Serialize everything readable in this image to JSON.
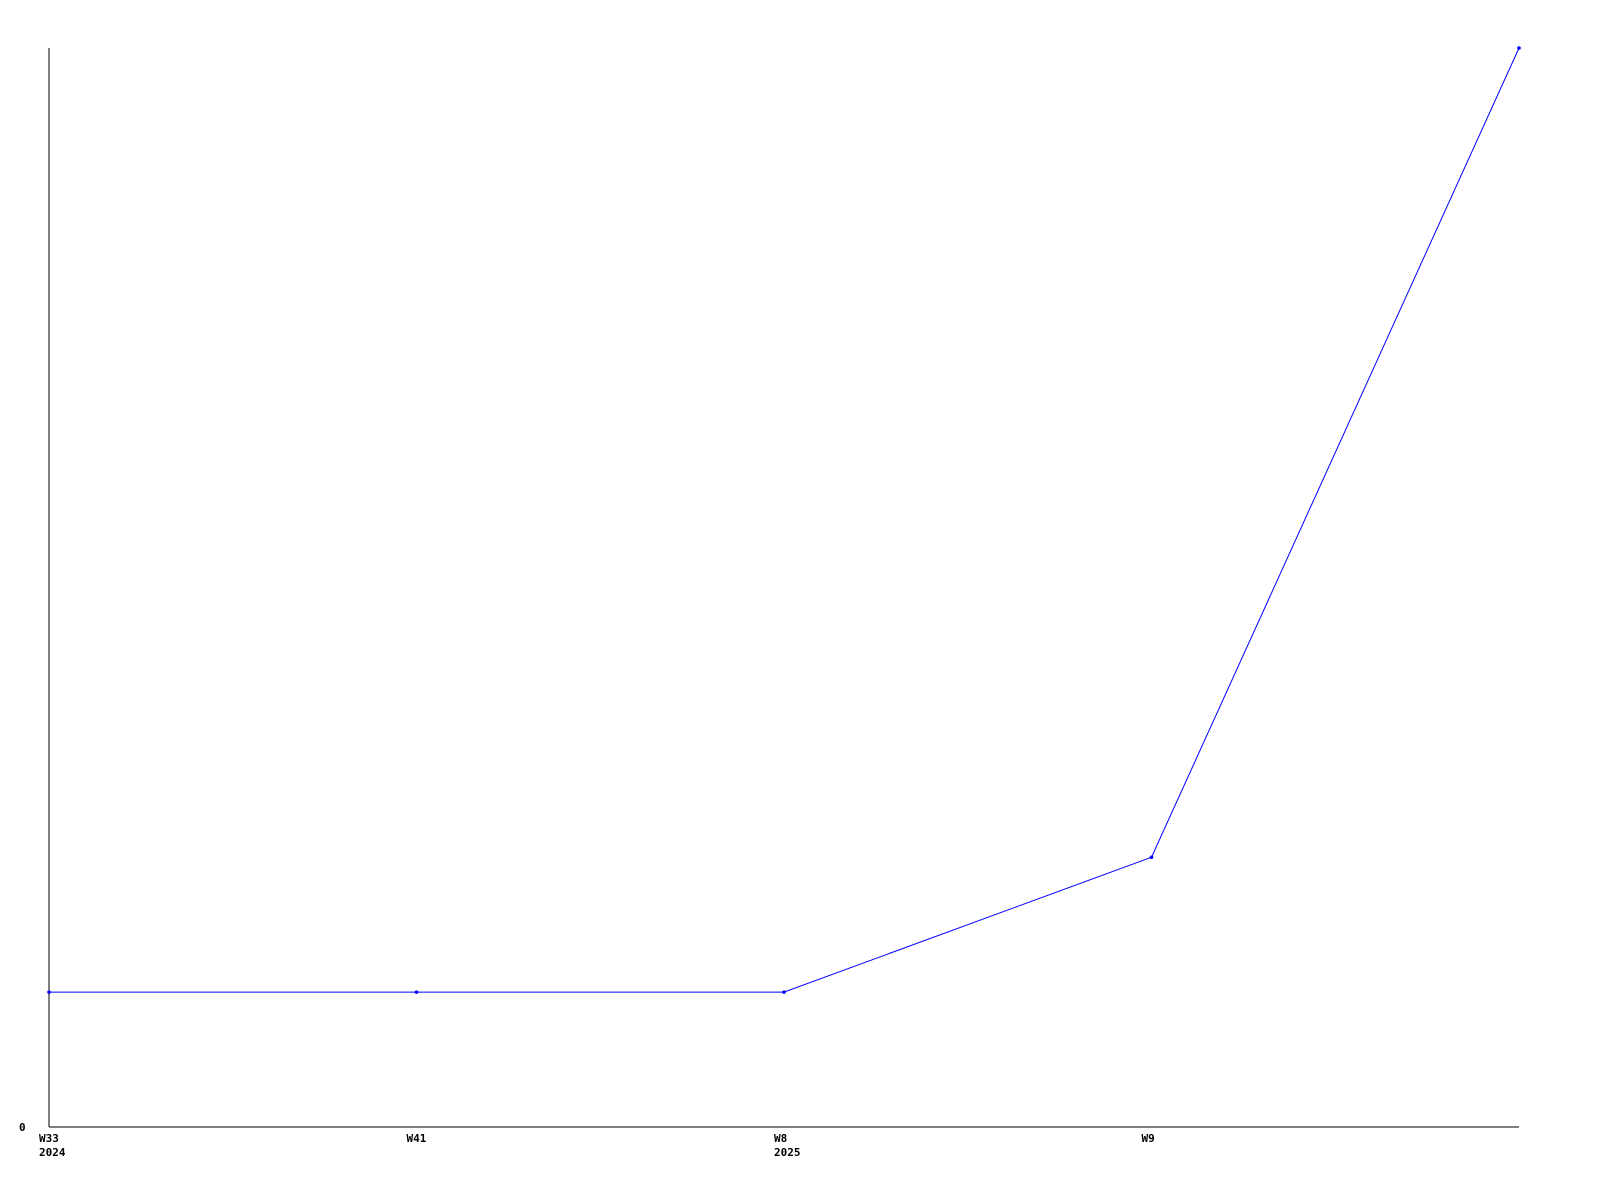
{
  "chart_data": {
    "type": "line",
    "title": "",
    "xlabel": "",
    "ylabel": "",
    "categories": [
      [
        "W33",
        "2024"
      ],
      [
        "W41",
        ""
      ],
      [
        "W8",
        "2025"
      ],
      [
        "W9",
        ""
      ],
      [
        "",
        ""
      ]
    ],
    "values": [
      1,
      1,
      1,
      2,
      8
    ],
    "ylim": [
      0,
      8
    ],
    "y_ticks": [
      "0"
    ],
    "grid": false,
    "legend": "none",
    "colors": {
      "line": "#0000ff",
      "axis": "#000000"
    }
  }
}
